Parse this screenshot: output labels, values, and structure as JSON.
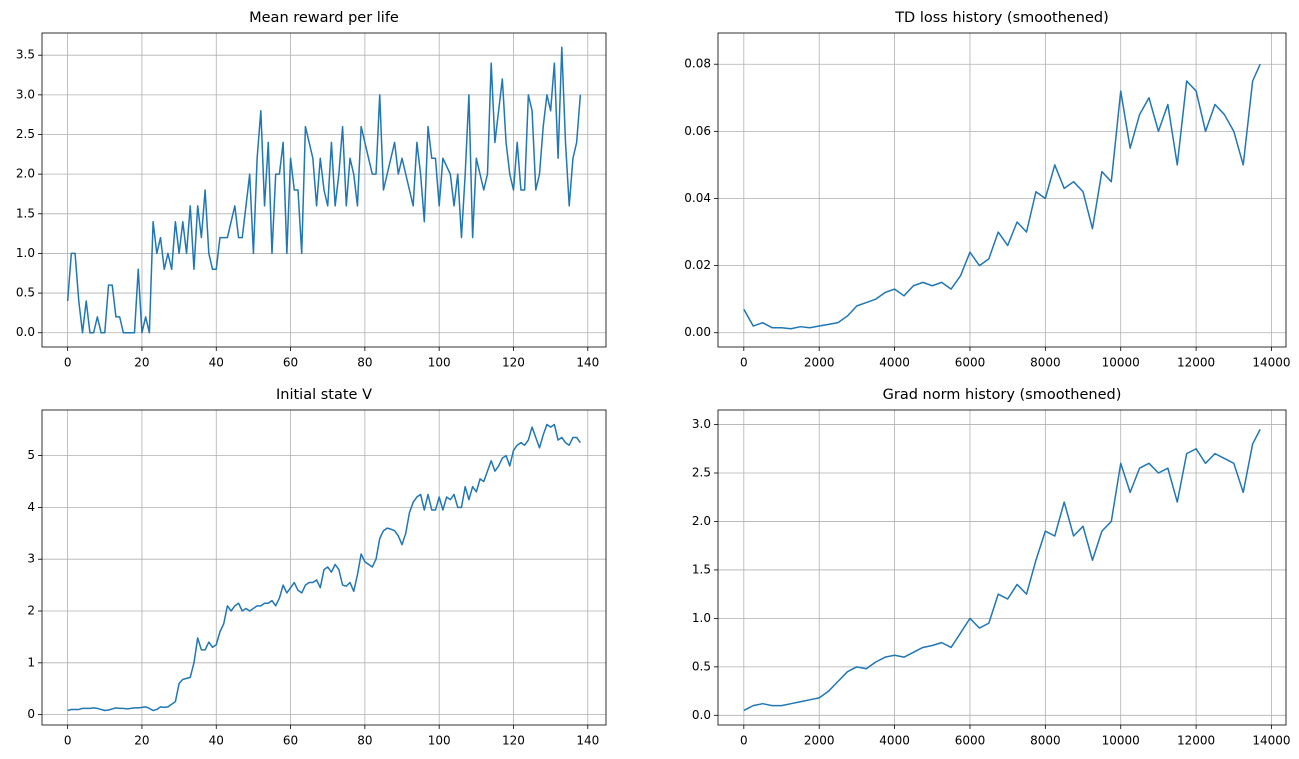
{
  "chart_data": [
    {
      "type": "line",
      "title": "Mean reward per life",
      "color": "#1f77b4",
      "grid": true,
      "x": [
        0,
        1,
        2,
        3,
        4,
        5,
        6,
        7,
        8,
        9,
        10,
        11,
        12,
        13,
        14,
        15,
        16,
        17,
        18,
        19,
        20,
        21,
        22,
        23,
        24,
        25,
        26,
        27,
        28,
        29,
        30,
        31,
        32,
        33,
        34,
        35,
        36,
        37,
        38,
        39,
        40,
        41,
        42,
        43,
        44,
        45,
        46,
        47,
        48,
        49,
        50,
        51,
        52,
        53,
        54,
        55,
        56,
        57,
        58,
        59,
        60,
        61,
        62,
        63,
        64,
        65,
        66,
        67,
        68,
        69,
        70,
        71,
        72,
        73,
        74,
        75,
        76,
        77,
        78,
        79,
        80,
        81,
        82,
        83,
        84,
        85,
        86,
        87,
        88,
        89,
        90,
        91,
        92,
        93,
        94,
        95,
        96,
        97,
        98,
        99,
        100,
        101,
        102,
        103,
        104,
        105,
        106,
        107,
        108,
        109,
        110,
        111,
        112,
        113,
        114,
        115,
        116,
        117,
        118,
        119,
        120,
        121,
        122,
        123,
        124,
        125,
        126,
        127,
        128,
        129,
        130,
        131,
        132,
        133,
        134,
        135,
        136,
        137,
        138
      ],
      "values": [
        0.4,
        1.0,
        1.0,
        0.4,
        0,
        0.4,
        0,
        0,
        0.2,
        0,
        0,
        0.6,
        0.6,
        0.2,
        0.2,
        0,
        0,
        0,
        0,
        0.8,
        0,
        0.2,
        0,
        1.4,
        1.0,
        1.2,
        0.8,
        1.0,
        0.8,
        1.4,
        1.0,
        1.4,
        1.0,
        1.6,
        0.8,
        1.6,
        1.2,
        1.8,
        1.0,
        0.8,
        0.8,
        1.2,
        1.2,
        1.2,
        1.4,
        1.6,
        1.2,
        1.2,
        1.6,
        2.0,
        1.0,
        2.2,
        2.8,
        1.6,
        2.4,
        1.0,
        2.0,
        2.0,
        2.4,
        1.0,
        2.2,
        1.8,
        1.8,
        1.0,
        2.6,
        2.4,
        2.2,
        1.6,
        2.2,
        1.8,
        1.6,
        2.4,
        1.6,
        2.0,
        2.6,
        1.6,
        2.2,
        2.0,
        1.6,
        2.6,
        2.4,
        2.2,
        2.0,
        2.0,
        3.0,
        1.8,
        2.0,
        2.2,
        2.4,
        2.0,
        2.2,
        2.0,
        1.8,
        1.6,
        2.4,
        2.0,
        1.4,
        2.6,
        2.2,
        2.2,
        1.6,
        2.2,
        2.1,
        2.0,
        1.6,
        2.0,
        1.2,
        2.0,
        3.0,
        1.2,
        2.2,
        2.0,
        1.8,
        2.0,
        3.4,
        2.4,
        2.8,
        3.2,
        2.4,
        2.0,
        1.8,
        2.4,
        1.8,
        1.8,
        3.0,
        2.8,
        1.8,
        2.0,
        2.6,
        3.0,
        2.8,
        3.4,
        2.2,
        3.6,
        2.4,
        1.6,
        2.2,
        2.4,
        3.0
      ],
      "xlim": [
        -6.9,
        144.9
      ],
      "xticks": [
        0,
        20,
        40,
        60,
        80,
        100,
        120,
        140
      ],
      "ylim": [
        -0.18,
        3.78
      ],
      "yticks": [
        {
          "value": 0,
          "label": "0.0"
        },
        0.5,
        {
          "value": 1,
          "label": "1.0"
        },
        1.5,
        {
          "value": 2,
          "label": "2.0"
        },
        2.5,
        {
          "value": 3,
          "label": "3.0"
        },
        3.5
      ]
    },
    {
      "type": "line",
      "title": "TD loss history (smoothened)",
      "color": "#1f77b4",
      "grid": true,
      "x": [
        0,
        250,
        500,
        750,
        1000,
        1250,
        1500,
        1750,
        2000,
        2250,
        2500,
        2750,
        3000,
        3250,
        3500,
        3750,
        4000,
        4250,
        4500,
        4750,
        5000,
        5250,
        5500,
        5750,
        6000,
        6250,
        6500,
        6750,
        7000,
        7250,
        7500,
        7750,
        8000,
        8250,
        8500,
        8750,
        9000,
        9250,
        9500,
        9750,
        10000,
        10250,
        10500,
        10750,
        11000,
        11250,
        11500,
        11750,
        12000,
        12250,
        12500,
        12750,
        13000,
        13250,
        13500,
        13700
      ],
      "values": [
        0.007,
        0.002,
        0.003,
        0.0015,
        0.0015,
        0.0012,
        0.0018,
        0.0015,
        0.002,
        0.0025,
        0.003,
        0.005,
        0.008,
        0.009,
        0.01,
        0.012,
        0.013,
        0.011,
        0.014,
        0.015,
        0.014,
        0.015,
        0.013,
        0.017,
        0.024,
        0.02,
        0.022,
        0.03,
        0.026,
        0.033,
        0.03,
        0.042,
        0.04,
        0.05,
        0.043,
        0.045,
        0.042,
        0.031,
        0.048,
        0.045,
        0.072,
        0.055,
        0.065,
        0.07,
        0.06,
        0.068,
        0.05,
        0.075,
        0.072,
        0.06,
        0.068,
        0.065,
        0.06,
        0.05,
        0.075,
        0.08
      ],
      "xlim": [
        -685,
        14385
      ],
      "xticks": [
        0,
        2000,
        4000,
        6000,
        8000,
        10000,
        12000,
        14000
      ],
      "ylim": [
        -0.00425,
        0.0893
      ],
      "yticks": [
        {
          "value": 0,
          "label": "0.00"
        },
        {
          "value": 0.02,
          "label": "0.02"
        },
        {
          "value": 0.04,
          "label": "0.04"
        },
        {
          "value": 0.06,
          "label": "0.06"
        },
        {
          "value": 0.08,
          "label": "0.08"
        }
      ]
    },
    {
      "type": "line",
      "title": "Initial state V",
      "color": "#1f77b4",
      "grid": true,
      "x": [
        0,
        1,
        2,
        3,
        4,
        5,
        6,
        7,
        8,
        9,
        10,
        11,
        12,
        13,
        14,
        15,
        16,
        17,
        18,
        19,
        20,
        21,
        22,
        23,
        24,
        25,
        26,
        27,
        28,
        29,
        30,
        31,
        32,
        33,
        34,
        35,
        36,
        37,
        38,
        39,
        40,
        41,
        42,
        43,
        44,
        45,
        46,
        47,
        48,
        49,
        50,
        51,
        52,
        53,
        54,
        55,
        56,
        57,
        58,
        59,
        60,
        61,
        62,
        63,
        64,
        65,
        66,
        67,
        68,
        69,
        70,
        71,
        72,
        73,
        74,
        75,
        76,
        77,
        78,
        79,
        80,
        81,
        82,
        83,
        84,
        85,
        86,
        87,
        88,
        89,
        90,
        91,
        92,
        93,
        94,
        95,
        96,
        97,
        98,
        99,
        100,
        101,
        102,
        103,
        104,
        105,
        106,
        107,
        108,
        109,
        110,
        111,
        112,
        113,
        114,
        115,
        116,
        117,
        118,
        119,
        120,
        121,
        122,
        123,
        124,
        125,
        126,
        127,
        128,
        129,
        130,
        131,
        132,
        133,
        134,
        135,
        136,
        137,
        138
      ],
      "values": [
        0.08,
        0.1,
        0.1,
        0.1,
        0.12,
        0.12,
        0.12,
        0.13,
        0.12,
        0.1,
        0.08,
        0.09,
        0.11,
        0.13,
        0.12,
        0.12,
        0.11,
        0.12,
        0.13,
        0.13,
        0.14,
        0.15,
        0.12,
        0.08,
        0.1,
        0.15,
        0.14,
        0.15,
        0.2,
        0.25,
        0.6,
        0.68,
        0.7,
        0.72,
        1.0,
        1.48,
        1.25,
        1.25,
        1.4,
        1.3,
        1.35,
        1.6,
        1.75,
        2.1,
        2.0,
        2.1,
        2.15,
        2.0,
        2.05,
        2.0,
        2.05,
        2.1,
        2.1,
        2.15,
        2.15,
        2.2,
        2.1,
        2.25,
        2.5,
        2.35,
        2.45,
        2.55,
        2.4,
        2.35,
        2.5,
        2.55,
        2.55,
        2.6,
        2.45,
        2.8,
        2.85,
        2.75,
        2.9,
        2.8,
        2.5,
        2.48,
        2.55,
        2.38,
        2.7,
        3.1,
        2.95,
        2.9,
        2.85,
        3.0,
        3.4,
        3.55,
        3.6,
        3.58,
        3.55,
        3.45,
        3.28,
        3.5,
        3.9,
        4.1,
        4.2,
        4.25,
        3.95,
        4.25,
        3.95,
        3.95,
        4.2,
        3.95,
        4.2,
        4.15,
        4.25,
        4.0,
        4.0,
        4.4,
        4.15,
        4.4,
        4.3,
        4.55,
        4.5,
        4.7,
        4.9,
        4.7,
        4.8,
        4.95,
        5.0,
        4.8,
        5.1,
        5.2,
        5.25,
        5.2,
        5.3,
        5.55,
        5.35,
        5.15,
        5.4,
        5.6,
        5.55,
        5.6,
        5.3,
        5.35,
        5.25,
        5.2,
        5.35,
        5.35,
        5.25
      ],
      "xlim": [
        -6.9,
        144.9
      ],
      "xticks": [
        0,
        20,
        40,
        60,
        80,
        100,
        120,
        140
      ],
      "ylim": [
        -0.2,
        5.88
      ],
      "yticks": [
        0,
        1,
        2,
        3,
        4,
        5
      ]
    },
    {
      "type": "line",
      "title": "Grad norm history (smoothened)",
      "color": "#1f77b4",
      "grid": true,
      "x": [
        0,
        250,
        500,
        750,
        1000,
        1250,
        1500,
        1750,
        2000,
        2250,
        2500,
        2750,
        3000,
        3250,
        3500,
        3750,
        4000,
        4250,
        4500,
        4750,
        5000,
        5250,
        5500,
        5750,
        6000,
        6250,
        6500,
        6750,
        7000,
        7250,
        7500,
        7750,
        8000,
        8250,
        8500,
        8750,
        9000,
        9250,
        9500,
        9750,
        10000,
        10250,
        10500,
        10750,
        11000,
        11250,
        11500,
        11750,
        12000,
        12250,
        12500,
        12750,
        13000,
        13250,
        13500,
        13700
      ],
      "values": [
        0.05,
        0.1,
        0.12,
        0.1,
        0.1,
        0.12,
        0.14,
        0.16,
        0.18,
        0.25,
        0.35,
        0.45,
        0.5,
        0.48,
        0.55,
        0.6,
        0.62,
        0.6,
        0.65,
        0.7,
        0.72,
        0.75,
        0.7,
        0.85,
        1.0,
        0.9,
        0.95,
        1.25,
        1.2,
        1.35,
        1.25,
        1.6,
        1.9,
        1.85,
        2.2,
        1.85,
        1.95,
        1.6,
        1.9,
        2.0,
        2.6,
        2.3,
        2.55,
        2.6,
        2.5,
        2.55,
        2.2,
        2.7,
        2.75,
        2.6,
        2.7,
        2.65,
        2.6,
        2.3,
        2.8,
        2.95
      ],
      "xlim": [
        -685,
        14385
      ],
      "xticks": [
        0,
        2000,
        4000,
        6000,
        8000,
        10000,
        12000,
        14000
      ],
      "ylim": [
        -0.1,
        3.15
      ],
      "yticks": [
        {
          "value": 0,
          "label": "0.0"
        },
        0.5,
        {
          "value": 1,
          "label": "1.0"
        },
        1.5,
        {
          "value": 2,
          "label": "2.0"
        },
        2.5,
        {
          "value": 3,
          "label": "3.0"
        }
      ]
    }
  ]
}
